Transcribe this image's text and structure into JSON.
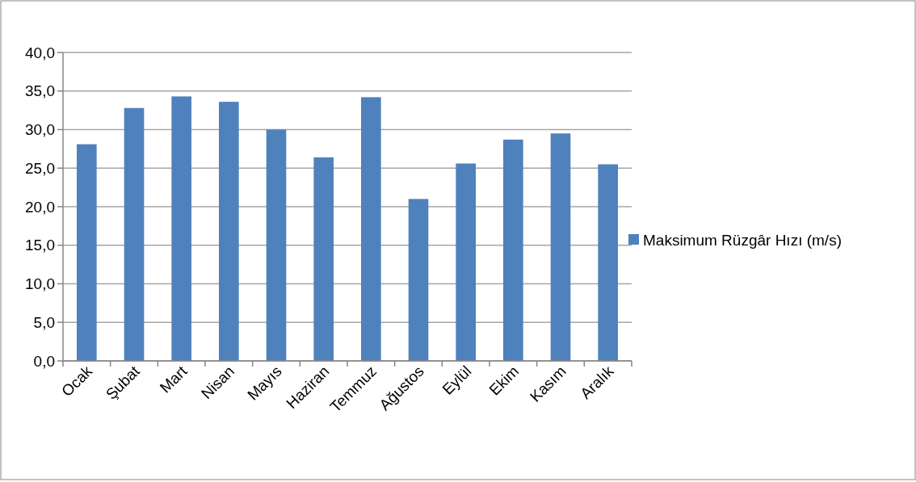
{
  "chart_data": {
    "type": "bar",
    "categories": [
      "Ocak",
      "Şubat",
      "Mart",
      "Nisan",
      "Mayıs",
      "Haziran",
      "Temmuz",
      "Ağustos",
      "Eylül",
      "Ekim",
      "Kasım",
      "Aralık"
    ],
    "series": [
      {
        "name": "Maksimum Rüzgâr Hızı (m/s)",
        "color": "#4f81bd",
        "values": [
          28.1,
          32.8,
          34.3,
          33.6,
          30.0,
          26.4,
          34.2,
          21.0,
          25.6,
          28.7,
          29.5,
          25.5
        ]
      }
    ],
    "ylim": [
      0,
      40
    ],
    "yticks": [
      {
        "value": 0,
        "label": "0,0"
      },
      {
        "value": 5,
        "label": "5,0"
      },
      {
        "value": 10,
        "label": "10,0"
      },
      {
        "value": 15,
        "label": "15,0"
      },
      {
        "value": 20,
        "label": "20,0"
      },
      {
        "value": 25,
        "label": "25,0"
      },
      {
        "value": 30,
        "label": "30,0"
      },
      {
        "value": 35,
        "label": "35,0"
      },
      {
        "value": 40,
        "label": "40,0"
      }
    ],
    "grid": "y",
    "legend": "right"
  }
}
